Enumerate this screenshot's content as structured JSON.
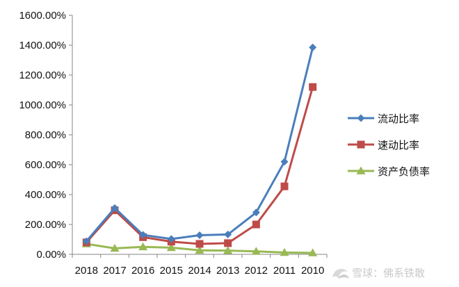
{
  "chart_data": {
    "type": "line",
    "title": "",
    "xlabel": "",
    "ylabel": "",
    "categories": [
      "2018",
      "2017",
      "2016",
      "2015",
      "2014",
      "2013",
      "2012",
      "2011",
      "2010"
    ],
    "ylim": [
      0,
      1600
    ],
    "yticks": [
      "0.00%",
      "200.00%",
      "400.00%",
      "600.00%",
      "800.00%",
      "1000.00%",
      "1200.00%",
      "1400.00%",
      "1600.00%"
    ],
    "grid": false,
    "legend_position": "right",
    "series": [
      {
        "name": "流动比率",
        "color": "#4a7ebb",
        "marker": "diamond",
        "values": [
          88,
          310,
          130,
          103,
          128,
          133,
          280,
          620,
          1385
        ]
      },
      {
        "name": "速动比率",
        "color": "#be4b48",
        "marker": "square",
        "values": [
          80,
          295,
          115,
          85,
          70,
          75,
          200,
          455,
          1120
        ]
      },
      {
        "name": "资产负债率",
        "color": "#98b954",
        "marker": "triangle",
        "values": [
          70,
          40,
          50,
          45,
          27,
          25,
          20,
          12,
          10
        ]
      }
    ]
  },
  "watermark": {
    "icon": "snowball-logo-icon",
    "text": "雪球：佛系铁散"
  }
}
